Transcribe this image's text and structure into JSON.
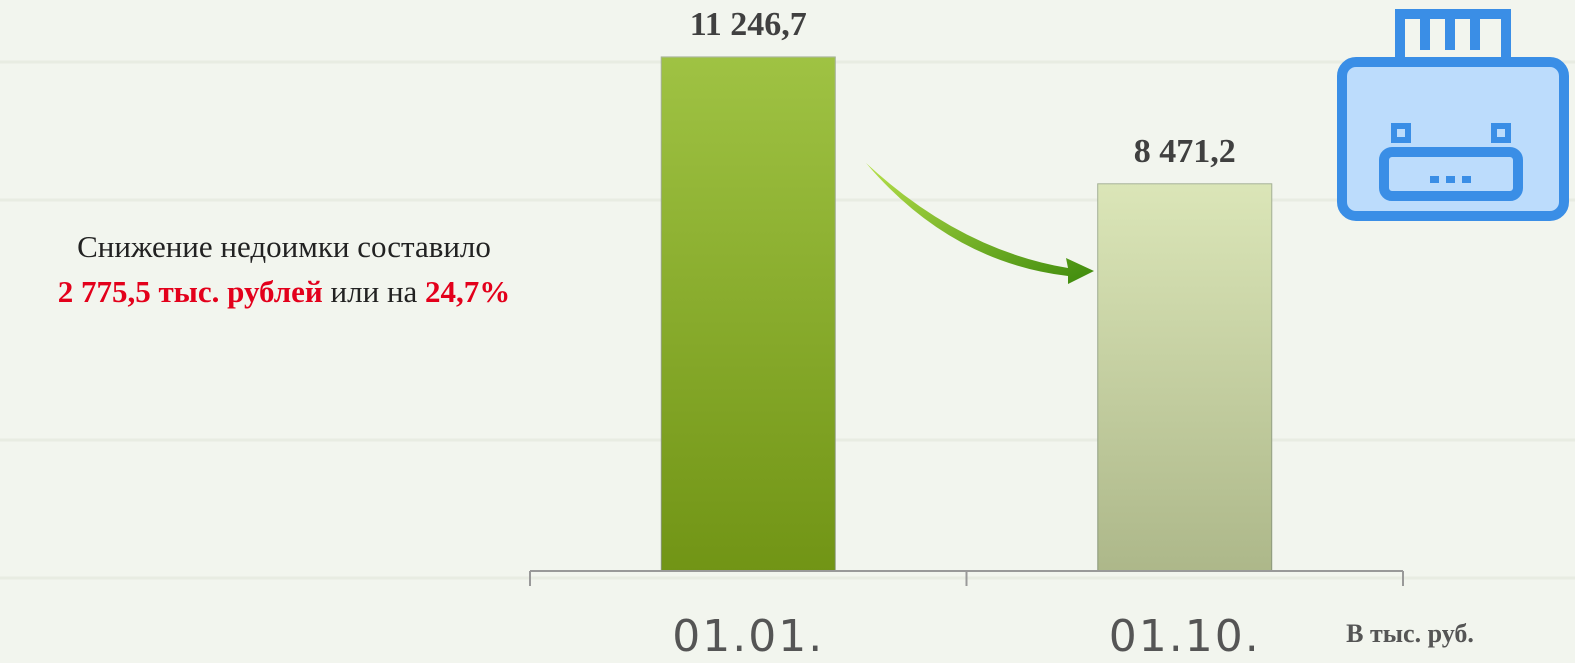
{
  "chart_data": {
    "type": "bar",
    "categories": [
      "01.01.",
      "01.10."
    ],
    "values": [
      11246.7,
      8471.2
    ],
    "value_labels": [
      "11 246,7",
      "8 471,2"
    ],
    "colors": [
      "#8ab51a",
      "#d3e0a8"
    ],
    "annotation": {
      "line1": "Снижение недоимки составило",
      "amount": "2 775,5 тыс. рублей",
      "connector": "или на",
      "percent": "24,7%"
    },
    "unit_label": "В  тыс. руб."
  }
}
